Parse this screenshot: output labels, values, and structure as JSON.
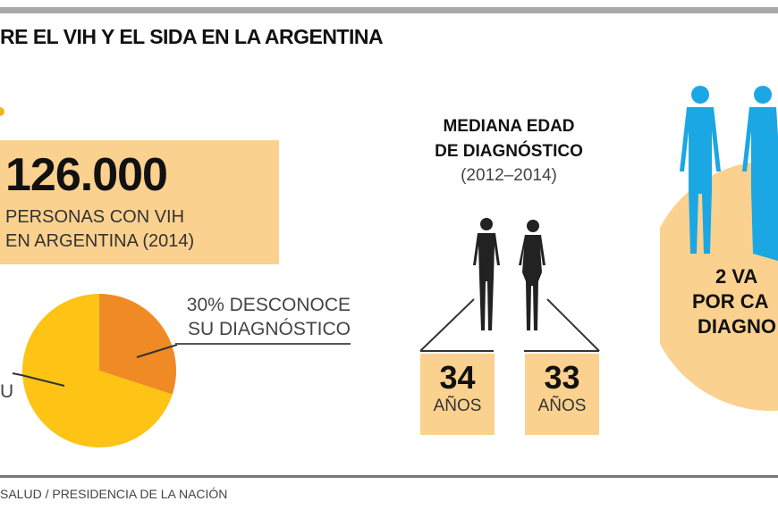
{
  "header": {
    "title": "RE EL VIH Y EL SIDA EN LA ARGENTINA"
  },
  "stat": {
    "number": "126.000",
    "line1": "PERSONAS CON VIH",
    "line2": "EN ARGENTINA (2014)"
  },
  "pie_labels": {
    "unknown_line1": "30% DESCONOCE",
    "unknown_line2": "SU DIAGNÓSTICO",
    "known_partial": "U"
  },
  "median": {
    "title_line1": "MEDIANA EDAD",
    "title_line2": "DE DIAGNÓSTICO",
    "years": "(2012–2014)",
    "male": {
      "value": "34",
      "unit": "AÑOS"
    },
    "female": {
      "value": "33",
      "unit": "AÑOS"
    }
  },
  "ratio": {
    "line1": "2 VA",
    "line2": "POR CA",
    "line3": "DIAGNO"
  },
  "footer": {
    "source": "SALUD / PRESIDENCIA DE LA NACIÓN"
  },
  "colors": {
    "box": "#fbd18f",
    "pie_unknown": "#f08a24",
    "pie_known": "#fdc315",
    "figures_blue": "#1ba7e3",
    "figures_dark": "#222222"
  },
  "chart_data": {
    "type": "pie",
    "slices": [
      {
        "label": "30% DESCONOCE SU DIAGNÓSTICO",
        "value": 30,
        "color": "#f08a24"
      },
      {
        "label": "U",
        "value": 70,
        "color": "#fdc315"
      }
    ]
  }
}
